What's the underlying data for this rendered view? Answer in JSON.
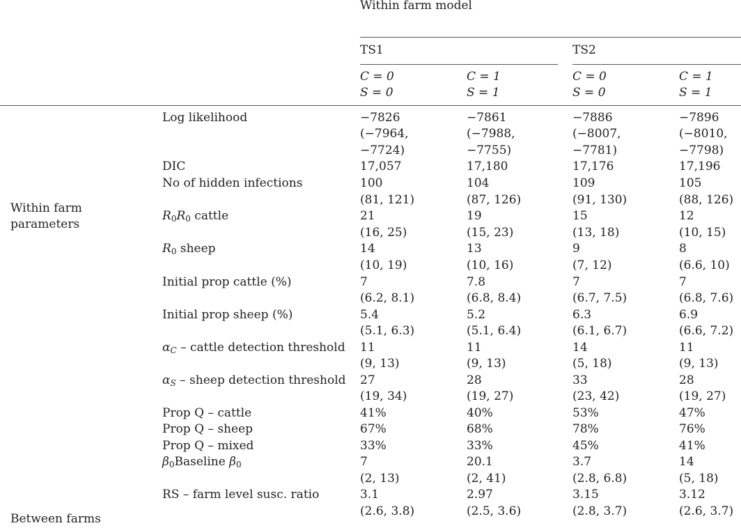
{
  "header": {
    "model_title": "Within farm model",
    "ts1": "TS1",
    "ts2": "TS2",
    "columns": [
      {
        "c": "C = 0",
        "s": "S = 0"
      },
      {
        "c": "C = 1",
        "s": "S = 1"
      },
      {
        "c": "C = 0",
        "s": "S = 0"
      },
      {
        "c": "C = 1",
        "s": "S = 1"
      }
    ]
  },
  "groups": {
    "within_line1": "Within farm",
    "within_line2": "parameters",
    "between_partial": "Between farms"
  },
  "rows": [
    {
      "label": "Log likelihood",
      "values": [
        "−7826",
        "−7861",
        "−7886",
        "−7896"
      ],
      "ci1": [
        "(−7964,",
        "(−7988,",
        "(−8007,",
        "(−8010,"
      ],
      "ci2": [
        "−7724)",
        "−7755)",
        "−7781)",
        "−7798)"
      ]
    },
    {
      "label": "DIC",
      "values": [
        "17,057",
        "17,180",
        "17,176",
        "17,196"
      ]
    },
    {
      "label": "No of hidden infections",
      "values": [
        "100",
        "104",
        "109",
        "105"
      ],
      "ci": [
        "(81, 121)",
        "(87, 126)",
        "(91, 130)",
        "(88, 126)"
      ]
    },
    {
      "label_pre": "R",
      "label_sub": "0",
      "label_pre2": "R",
      "label_sub2": "0",
      "label_post": " cattle",
      "values": [
        "21",
        "19",
        "15",
        "12"
      ],
      "ci": [
        "(16, 25)",
        "(15, 23)",
        "(13, 18)",
        "(10, 15)"
      ]
    },
    {
      "label_pre": "R",
      "label_sub": "0",
      "label_post": " sheep",
      "values": [
        "14",
        "13",
        "9",
        "8"
      ],
      "ci": [
        "(10, 19)",
        "(10, 16)",
        "(7, 12)",
        "(6.6, 10)"
      ]
    },
    {
      "label": "Initial prop cattle (%)",
      "values": [
        "7",
        "7.8",
        "7",
        "7"
      ],
      "ci": [
        "(6.2, 8.1)",
        "(6.8, 8.4)",
        "(6.7, 7.5)",
        "(6.8, 7.6)"
      ]
    },
    {
      "label": "Initial prop sheep (%)",
      "values": [
        "5.4",
        "5.2",
        "6.3",
        "6.9"
      ],
      "ci": [
        "(5.1, 6.3)",
        "(5.1, 6.4)",
        "(6.1, 6.7)",
        "(6.6, 7.2)"
      ]
    },
    {
      "label_pre": "α",
      "label_sub": "C",
      "label_post": " – cattle detection threshold",
      "values": [
        "11",
        "11",
        "14",
        "11"
      ],
      "ci": [
        "(9, 13)",
        "(9, 13)",
        "(5, 18)",
        "(9, 13)"
      ]
    },
    {
      "label_pre": "α",
      "label_sub": "S",
      "label_post": " – sheep detection threshold",
      "values": [
        "27",
        "28",
        "33",
        "28"
      ],
      "ci": [
        "(19, 34)",
        "(19, 27)",
        "(23, 42)",
        "(19, 27)"
      ]
    },
    {
      "label": "Prop Q – cattle",
      "values": [
        "41%",
        "40%",
        "53%",
        "47%"
      ]
    },
    {
      "label": "Prop Q – sheep",
      "values": [
        "67%",
        "68%",
        "78%",
        "76%"
      ]
    },
    {
      "label": "Prop Q – mixed",
      "values": [
        "33%",
        "33%",
        "45%",
        "41%"
      ]
    },
    {
      "label_pre": "β",
      "label_sub": "0",
      "label_mid": "Baseline ",
      "label_pre2": "β",
      "label_sub2": "0",
      "values": [
        "7",
        "20.1",
        "3.7",
        "14"
      ],
      "ci": [
        "(2, 13)",
        "(2, 41)",
        "(2.8, 6.8)",
        "(5, 18)"
      ]
    },
    {
      "label": "RS – farm level susc. ratio",
      "values": [
        "3.1",
        "2.97",
        "3.15",
        "3.12"
      ],
      "ci": [
        "(2.6, 3.8)",
        "(2.5, 3.6)",
        "(2.8, 3.7)",
        "(2.6, 3.7)"
      ]
    }
  ]
}
